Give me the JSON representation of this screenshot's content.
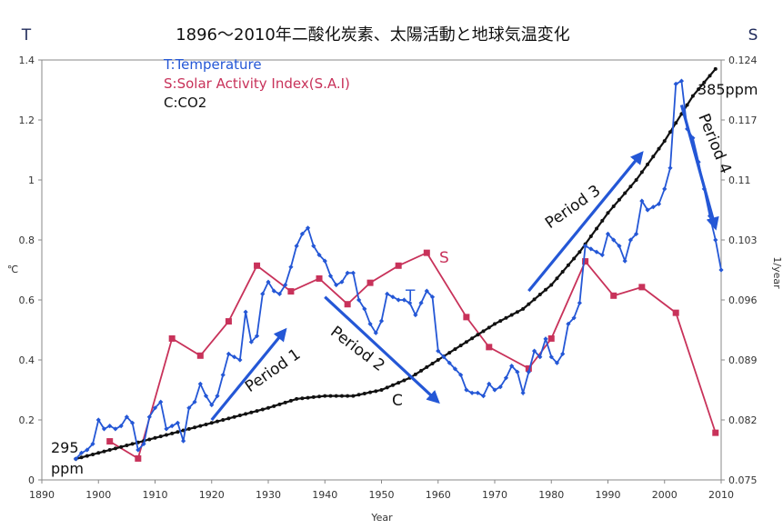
{
  "chart_data": {
    "type": "line",
    "title": "1896〜2010年二酸化炭素、太陽活動と地球気温変化",
    "xlabel": "Year",
    "left_axis_letter": "T",
    "right_axis_letter": "S",
    "left_unit": "℃",
    "right_unit": "1/year",
    "xlim": [
      1890,
      2010
    ],
    "ylim_left": [
      0,
      1.4
    ],
    "ylim_right": [
      0.075,
      0.124
    ],
    "x_ticks": [
      1890,
      1900,
      1910,
      1920,
      1930,
      1940,
      1950,
      1960,
      1970,
      1980,
      1990,
      2000,
      2010
    ],
    "y_ticks_left": [
      "0",
      "0.2",
      "0.4",
      "0.6",
      "0.8",
      "1",
      "1.2",
      "1.4"
    ],
    "y_ticks_right": [
      "0.075",
      "0.082",
      "0.089",
      "0.096",
      "0.103",
      "0.11",
      "0.117",
      "0.124"
    ],
    "legend": [
      {
        "label": "T:Temperature",
        "color": "#2457d6"
      },
      {
        "label": "S:Solar Activity Index(S.A.I)",
        "color": "#c8325a"
      },
      {
        "label": "C:CO2",
        "color": "#111111"
      }
    ],
    "series": [
      {
        "name": "T",
        "color": "#2457d6",
        "axis": "left",
        "x": [
          1896,
          1897,
          1898,
          1899,
          1900,
          1901,
          1902,
          1903,
          1904,
          1905,
          1906,
          1907,
          1908,
          1909,
          1910,
          1911,
          1912,
          1913,
          1914,
          1915,
          1916,
          1917,
          1918,
          1919,
          1920,
          1921,
          1922,
          1923,
          1924,
          1925,
          1926,
          1927,
          1928,
          1929,
          1930,
          1931,
          1932,
          1933,
          1934,
          1935,
          1936,
          1937,
          1938,
          1939,
          1940,
          1941,
          1942,
          1943,
          1944,
          1945,
          1946,
          1947,
          1948,
          1949,
          1950,
          1951,
          1952,
          1953,
          1954,
          1955,
          1956,
          1957,
          1958,
          1959,
          1960,
          1961,
          1962,
          1963,
          1964,
          1965,
          1966,
          1967,
          1968,
          1969,
          1970,
          1971,
          1972,
          1973,
          1974,
          1975,
          1976,
          1977,
          1978,
          1979,
          1980,
          1981,
          1982,
          1983,
          1984,
          1985,
          1986,
          1987,
          1988,
          1989,
          1990,
          1991,
          1992,
          1993,
          1994,
          1995,
          1996,
          1997,
          1998,
          1999,
          2000,
          2001,
          2002,
          2003,
          2004,
          2005,
          2006,
          2007,
          2008,
          2009,
          2010
        ],
        "values": [
          0.07,
          0.09,
          0.1,
          0.12,
          0.2,
          0.17,
          0.18,
          0.17,
          0.18,
          0.21,
          0.19,
          0.1,
          0.12,
          0.21,
          0.24,
          0.26,
          0.17,
          0.18,
          0.19,
          0.13,
          0.24,
          0.26,
          0.32,
          0.28,
          0.25,
          0.28,
          0.35,
          0.42,
          0.41,
          0.4,
          0.56,
          0.46,
          0.48,
          0.62,
          0.66,
          0.63,
          0.62,
          0.65,
          0.71,
          0.78,
          0.82,
          0.84,
          0.78,
          0.75,
          0.73,
          0.68,
          0.65,
          0.66,
          0.69,
          0.69,
          0.6,
          0.57,
          0.52,
          0.49,
          0.53,
          0.62,
          0.61,
          0.6,
          0.6,
          0.59,
          0.55,
          0.59,
          0.63,
          0.61,
          0.43,
          0.41,
          0.39,
          0.37,
          0.35,
          0.3,
          0.29,
          0.29,
          0.28,
          0.32,
          0.3,
          0.31,
          0.34,
          0.38,
          0.36,
          0.29,
          0.36,
          0.43,
          0.41,
          0.47,
          0.41,
          0.39,
          0.42,
          0.52,
          0.54,
          0.59,
          0.78,
          0.77,
          0.76,
          0.75,
          0.82,
          0.8,
          0.78,
          0.73,
          0.8,
          0.82,
          0.93,
          0.9,
          0.91,
          0.92,
          0.97,
          1.04,
          1.32,
          1.33,
          1.17,
          1.14,
          1.06,
          0.97,
          0.88,
          0.8,
          0.7
        ]
      },
      {
        "name": "S",
        "color": "#c8325a",
        "axis": "right",
        "x": [
          1902,
          1907,
          1913,
          1918,
          1923,
          1928,
          1934,
          1939,
          1944,
          1948,
          1953,
          1958,
          1965,
          1969,
          1976,
          1980,
          1986,
          1991,
          1996,
          2002,
          2009
        ],
        "values": [
          0.0795,
          0.0775,
          0.0915,
          0.0895,
          0.0935,
          0.1,
          0.097,
          0.0985,
          0.0955,
          0.098,
          0.1,
          0.1015,
          0.094,
          0.0905,
          0.088,
          0.0915,
          0.1005,
          0.0965,
          0.0975,
          0.0945,
          0.0805
        ]
      },
      {
        "name": "C",
        "color": "#111111",
        "axis": "left",
        "x": [
          1896,
          1900,
          1910,
          1920,
          1930,
          1935,
          1940,
          1945,
          1950,
          1955,
          1960,
          1965,
          1970,
          1975,
          1980,
          1985,
          1990,
          1995,
          2000,
          2005,
          2009
        ],
        "values": [
          0.07,
          0.09,
          0.14,
          0.19,
          0.24,
          0.27,
          0.28,
          0.28,
          0.3,
          0.34,
          0.4,
          0.46,
          0.52,
          0.57,
          0.65,
          0.76,
          0.89,
          1.0,
          1.13,
          1.28,
          1.37
        ]
      }
    ],
    "annotations": {
      "label_T": "T",
      "label_S": "S",
      "label_C": "C",
      "co2_start_value": "295",
      "co2_start_unit": "ppm",
      "co2_end": "385ppm",
      "periods": [
        {
          "label": "Period 1",
          "from": [
            1920,
            0.2
          ],
          "to": [
            1933,
            0.5
          ]
        },
        {
          "label": "Period 2",
          "from": [
            1940,
            0.61
          ],
          "to": [
            1960,
            0.26
          ]
        },
        {
          "label": "Period 3",
          "from": [
            1976,
            0.63
          ],
          "to": [
            1996,
            1.09
          ]
        },
        {
          "label": "Period 4",
          "from": [
            2003,
            1.25
          ],
          "to": [
            2009,
            0.84
          ]
        }
      ]
    }
  }
}
